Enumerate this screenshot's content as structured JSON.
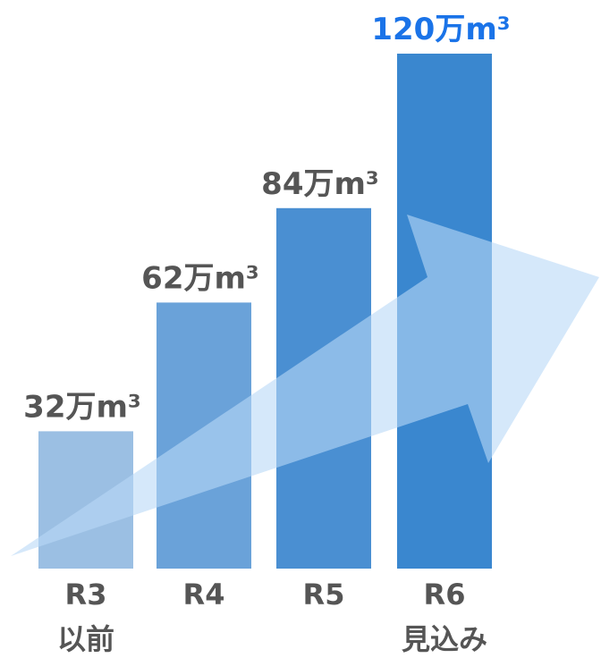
{
  "chart_data": {
    "type": "bar",
    "categories": [
      "R3\n以前",
      "R4",
      "R5",
      "R6\n見込み"
    ],
    "values": [
      32,
      62,
      84,
      120
    ],
    "value_labels": [
      "32万m³",
      "62万m³",
      "84万m³",
      "120万m³"
    ],
    "colors": [
      "#9bbfe3",
      "#6aa2d9",
      "#4a8fd2",
      "#3a87cf"
    ],
    "label_colors": [
      "#555555",
      "#555555",
      "#555555",
      "#1a73e8"
    ],
    "ylim": [
      0,
      125
    ]
  }
}
